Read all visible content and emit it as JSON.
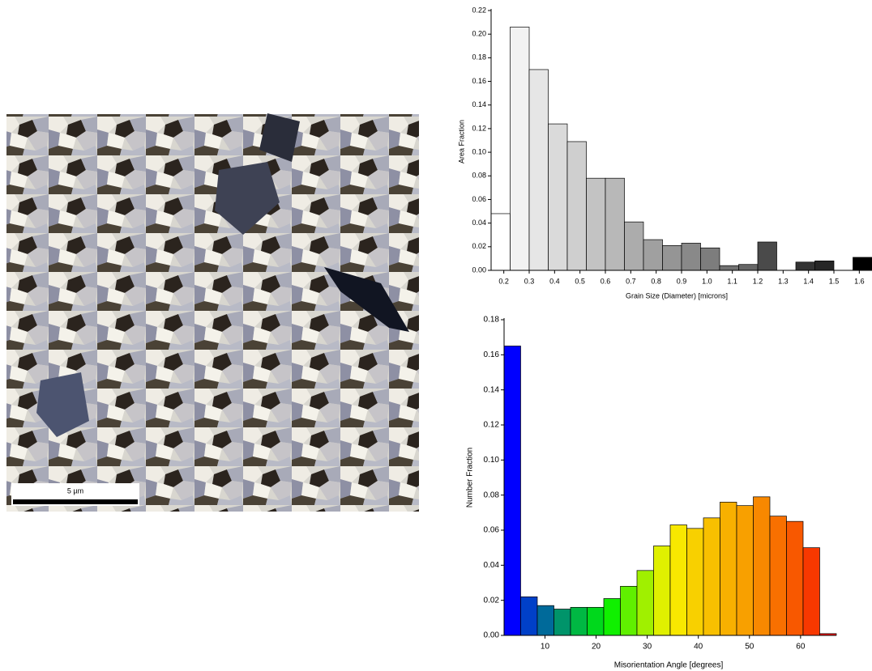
{
  "image": {
    "scale_bar": "5 µm"
  },
  "chart_data": [
    {
      "type": "histogram",
      "y_label": "Area Fraction",
      "x_label": "Grain Size (Diameter) [microns]",
      "bins": [
        0.15,
        0.225,
        0.3,
        0.375,
        0.45,
        0.525,
        0.6,
        0.675,
        0.75,
        0.825,
        0.9,
        0.975,
        1.05,
        1.125,
        1.2,
        1.275,
        1.35,
        1.425,
        1.5,
        1.575,
        1.65
      ],
      "values": [
        0.048,
        0.206,
        0.17,
        0.124,
        0.109,
        0.078,
        0.078,
        0.041,
        0.026,
        0.021,
        0.023,
        0.019,
        0.004,
        0.005,
        0.024,
        0,
        0.007,
        0.008,
        0,
        0.011
      ],
      "colors": [
        "#ffffff",
        "#f2f2f2",
        "#e6e6e6",
        "#dadada",
        "#cfcfcf",
        "#c3c3c3",
        "#b8b8b8",
        "#acacac",
        "#a0a0a0",
        "#959595",
        "#898989",
        "#7d7d7d",
        "#727272",
        "#666666",
        "#4a4a4a",
        "#3f3f3f",
        "#333333",
        "#262626",
        "#161616",
        "#000000"
      ],
      "xlim": [
        0.15,
        1.65
      ],
      "ylim": [
        0,
        0.22
      ],
      "xticks": [
        0.2,
        0.3,
        0.4,
        0.5,
        0.6,
        0.7,
        0.8,
        0.9,
        {
          "value": 1,
          "label": "1.0"
        },
        1.1,
        1.2,
        1.3,
        1.4,
        1.5,
        1.6
      ],
      "yticks": [
        {
          "value": 0,
          "label": "0.00"
        },
        {
          "value": 0.02,
          "label": "0.02"
        },
        {
          "value": 0.04,
          "label": "0.04"
        },
        {
          "value": 0.06,
          "label": "0.06"
        },
        {
          "value": 0.08,
          "label": "0.08"
        },
        {
          "value": 0.1,
          "label": "0.10"
        },
        {
          "value": 0.12,
          "label": "0.12"
        },
        {
          "value": 0.14,
          "label": "0.14"
        },
        {
          "value": 0.16,
          "label": "0.16"
        },
        {
          "value": 0.18,
          "label": "0.18"
        },
        {
          "value": 0.2,
          "label": "0.20"
        },
        {
          "value": 0.22,
          "label": "0.22"
        }
      ]
    },
    {
      "type": "histogram",
      "y_label": "Number Fraction",
      "x_label": "Misorientation Angle [degrees]",
      "bins": [
        2,
        5.25,
        8.5,
        11.75,
        15,
        18.25,
        21.5,
        24.75,
        28,
        31.25,
        34.5,
        37.75,
        41,
        44.25,
        47.5,
        50.75,
        54,
        57.25,
        60.5,
        63.75,
        67
      ],
      "values": [
        0.165,
        0.022,
        0.017,
        0.015,
        0.016,
        0.016,
        0.021,
        0.028,
        0.037,
        0.051,
        0.063,
        0.061,
        0.067,
        0.076,
        0.074,
        0.079,
        0.068,
        0.065,
        0.05,
        0.001
      ],
      "colors": [
        "#0000ff",
        "#0040c8",
        "#006a9a",
        "#00946a",
        "#00b843",
        "#00d81c",
        "#10f000",
        "#60f000",
        "#a0f000",
        "#e0f000",
        "#f8e800",
        "#f8d000",
        "#f8c000",
        "#f8b000",
        "#f8a000",
        "#f88800",
        "#f87000",
        "#f85800",
        "#f83800",
        "#f81000"
      ],
      "xlim": [
        2,
        67
      ],
      "ylim": [
        0,
        0.18
      ],
      "xticks": [
        10,
        20,
        30,
        40,
        50,
        60
      ],
      "yticks": [
        {
          "value": 0,
          "label": "0.00"
        },
        {
          "value": 0.02,
          "label": "0.02"
        },
        {
          "value": 0.04,
          "label": "0.04"
        },
        {
          "value": 0.06,
          "label": "0.06"
        },
        {
          "value": 0.08,
          "label": "0.08"
        },
        {
          "value": 0.1,
          "label": "0.10"
        },
        {
          "value": 0.12,
          "label": "0.12"
        },
        {
          "value": 0.14,
          "label": "0.14"
        },
        {
          "value": 0.16,
          "label": "0.16"
        },
        {
          "value": 0.18,
          "label": "0.18"
        }
      ]
    }
  ]
}
